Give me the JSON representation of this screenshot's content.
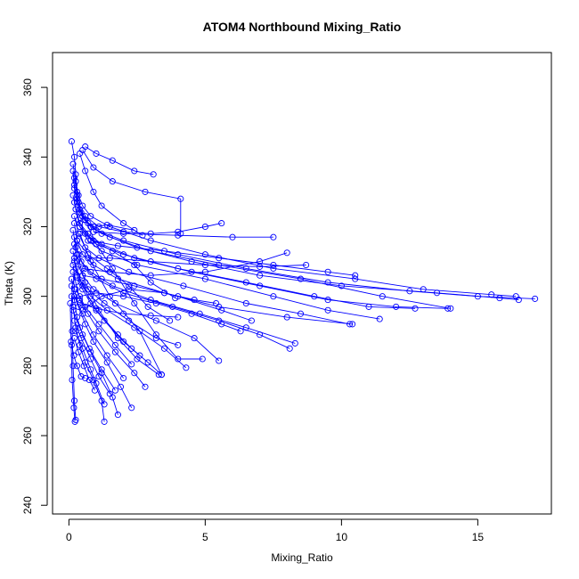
{
  "chart_data": {
    "type": "line",
    "title": "ATOM4 Northbound Mixing_Ratio",
    "xlabel": "Mixing_Ratio",
    "ylabel": "Theta (K)",
    "xlim": [
      -0.6,
      17.7
    ],
    "ylim": [
      237.5,
      370
    ],
    "xticks": [
      "0",
      "5",
      "10",
      "15"
    ],
    "xtick_values": [
      0,
      5,
      10,
      15
    ],
    "yticks": [
      "240",
      "260",
      "280",
      "300",
      "320",
      "340",
      "360"
    ],
    "ytick_values": [
      240,
      260,
      280,
      300,
      320,
      340,
      360
    ],
    "series_color": "#0000ff",
    "marker": "open-circle",
    "grid": false,
    "series": [
      {
        "x": [
          0.1,
          0.2,
          0.25,
          0.3,
          0.35,
          0.4,
          0.55,
          0.9,
          1.4,
          2.4
        ],
        "y": [
          344.5,
          340.0,
          335.0,
          330.0,
          327.0,
          324.0,
          322.0,
          320.0,
          320.5,
          319.0
        ]
      },
      {
        "x": [
          0.15,
          0.25,
          0.35,
          0.5,
          0.8,
          1.5,
          3.0,
          5.0,
          7.5,
          10.5,
          13.0,
          15.5,
          16.4
        ],
        "y": [
          338.0,
          333.0,
          329.0,
          326.0,
          323.0,
          320.0,
          316.0,
          312.0,
          308.0,
          305.0,
          302.0,
          300.5,
          300.0
        ]
      },
      {
        "x": [
          0.15,
          0.2,
          0.3,
          0.45,
          0.7,
          1.2,
          2.5,
          4.5,
          7.0,
          10.0,
          13.5,
          15.8,
          16.5
        ],
        "y": [
          336.0,
          331.0,
          327.0,
          324.0,
          321.0,
          318.0,
          314.0,
          310.0,
          306.0,
          303.0,
          301.0,
          299.5,
          299.0
        ]
      },
      {
        "x": [
          0.2,
          0.3,
          0.4,
          0.6,
          1.0,
          2.0,
          4.0,
          6.5,
          9.5,
          12.5,
          15.0,
          17.1
        ],
        "y": [
          334.0,
          329.0,
          325.0,
          322.0,
          319.0,
          316.0,
          312.0,
          308.0,
          304.0,
          301.5,
          300.0,
          299.3
        ]
      },
      {
        "x": [
          0.2,
          0.3,
          0.5,
          0.8,
          1.5,
          3.0,
          5.5,
          8.5,
          11.5,
          14.0
        ],
        "y": [
          332.0,
          327.0,
          323.0,
          320.0,
          317.0,
          313.0,
          309.0,
          305.0,
          300.0,
          296.5
        ]
      },
      {
        "x": [
          0.15,
          0.25,
          0.4,
          0.7,
          1.2,
          2.4,
          4.5,
          7.0,
          9.5,
          12.0,
          13.9
        ],
        "y": [
          329.0,
          325.0,
          321.0,
          318.0,
          315.0,
          311.0,
          307.0,
          303.0,
          299.0,
          297.0,
          296.5
        ]
      },
      {
        "x": [
          0.2,
          0.35,
          0.6,
          1.0,
          2.0,
          4.0,
          6.5,
          9.0,
          11.0,
          12.7
        ],
        "y": [
          327.0,
          322.0,
          318.0,
          315.0,
          312.0,
          308.0,
          304.0,
          300.0,
          297.0,
          296.5
        ]
      },
      {
        "x": [
          0.25,
          0.4,
          0.7,
          1.2,
          2.5,
          5.0,
          7.5,
          9.5,
          11.4
        ],
        "y": [
          325.0,
          320.0,
          316.0,
          313.0,
          309.0,
          305.0,
          300.0,
          296.0,
          293.5
        ]
      },
      {
        "x": [
          0.2,
          0.35,
          0.6,
          1.1,
          2.2,
          4.2,
          6.5,
          8.5,
          10.3
        ],
        "y": [
          323.0,
          318.0,
          314.0,
          311.0,
          307.0,
          303.0,
          298.0,
          295.0,
          292.0
        ]
      },
      {
        "x": [
          0.2,
          0.3,
          0.5,
          0.9,
          1.8,
          3.5,
          5.5,
          8.0,
          10.4
        ],
        "y": [
          321.0,
          316.0,
          312.0,
          309.0,
          305.0,
          301.0,
          297.0,
          294.0,
          292.0
        ]
      },
      {
        "x": [
          0.15,
          0.25,
          0.45,
          0.8,
          1.6,
          3.0,
          4.8,
          6.5,
          8.3
        ],
        "y": [
          319.0,
          314.0,
          310.0,
          307.0,
          303.0,
          299.0,
          295.0,
          291.0,
          286.5
        ]
      },
      {
        "x": [
          0.2,
          0.35,
          0.6,
          1.0,
          2.0,
          3.8,
          5.5,
          7.0,
          8.1
        ],
        "y": [
          317.0,
          312.0,
          308.0,
          305.0,
          301.0,
          297.0,
          293.0,
          289.0,
          285.0
        ]
      },
      {
        "x": [
          0.2,
          0.3,
          0.5,
          0.9,
          1.7,
          3.2,
          4.6,
          5.5
        ],
        "y": [
          315.0,
          310.0,
          306.0,
          302.0,
          298.0,
          293.0,
          288.0,
          281.5
        ]
      },
      {
        "x": [
          0.15,
          0.25,
          0.45,
          0.8,
          1.4,
          2.4,
          3.5,
          4.3
        ],
        "y": [
          313.0,
          308.0,
          304.0,
          300.0,
          296.0,
          291.0,
          285.0,
          279.5
        ]
      },
      {
        "x": [
          0.2,
          0.3,
          0.5,
          0.8,
          1.3,
          2.0,
          2.9,
          3.4
        ],
        "y": [
          311.0,
          306.0,
          302.0,
          298.0,
          293.0,
          287.0,
          281.0,
          277.5
        ]
      },
      {
        "x": [
          0.15,
          0.25,
          0.4,
          0.7,
          1.1,
          1.7,
          2.4,
          2.8
        ],
        "y": [
          309.0,
          304.0,
          299.0,
          295.0,
          290.0,
          284.0,
          278.0,
          274.0
        ]
      },
      {
        "x": [
          0.15,
          0.2,
          0.35,
          0.6,
          0.9,
          1.4,
          1.9,
          2.3
        ],
        "y": [
          307.0,
          302.0,
          297.0,
          292.0,
          287.0,
          281.0,
          274.0,
          268.0
        ]
      },
      {
        "x": [
          0.1,
          0.2,
          0.3,
          0.5,
          0.8,
          1.2,
          1.6,
          1.8
        ],
        "y": [
          305.0,
          299.0,
          294.0,
          289.0,
          284.0,
          278.0,
          271.0,
          266.0
        ]
      },
      {
        "x": [
          0.1,
          0.15,
          0.25,
          0.4,
          0.6,
          0.9,
          1.2,
          1.3
        ],
        "y": [
          303.0,
          297.0,
          291.0,
          286.0,
          281.0,
          276.0,
          270.0,
          264.0
        ]
      },
      {
        "x": [
          0.1,
          0.12,
          0.15,
          0.2,
          0.25
        ],
        "y": [
          300.0,
          290.0,
          280.0,
          270.0,
          264.5
        ]
      },
      {
        "x": [
          0.05,
          0.08,
          0.12,
          0.18,
          0.22
        ],
        "y": [
          298.0,
          287.0,
          276.0,
          268.0,
          264.0
        ]
      },
      {
        "x": [
          0.3,
          0.6,
          1.0,
          1.6,
          2.4,
          3.2,
          4.0,
          4.9
        ],
        "y": [
          328.0,
          322.0,
          315.0,
          308.0,
          298.0,
          289.0,
          282.0,
          282.0
        ]
      },
      {
        "x": [
          0.4,
          0.8,
          1.5,
          2.6,
          3.4
        ],
        "y": [
          318.0,
          310.0,
          300.0,
          290.0,
          277.5
        ]
      },
      {
        "x": [
          0.3,
          0.6,
          1.1,
          1.8,
          2.5,
          3.3
        ],
        "y": [
          312.0,
          304.0,
          296.0,
          288.0,
          282.0,
          277.5
        ]
      },
      {
        "x": [
          0.6,
          1.0,
          1.6,
          2.4,
          3.1
        ],
        "y": [
          343.0,
          341.0,
          339.0,
          336.0,
          335.0
        ]
      },
      {
        "x": [
          0.5,
          0.9,
          1.6,
          2.8,
          4.1,
          4.1
        ],
        "y": [
          342.0,
          337.0,
          333.0,
          330.0,
          328.0,
          318.0
        ]
      },
      {
        "x": [
          0.4,
          0.6,
          0.9,
          1.2,
          2.0,
          2.7
        ],
        "y": [
          341.0,
          336.0,
          330.0,
          326.0,
          321.0,
          317.5
        ]
      },
      {
        "x": [
          0.6,
          1.1,
          2.0,
          3.0,
          4.0,
          5.0,
          5.6
        ],
        "y": [
          323.0,
          320.0,
          318.5,
          318.0,
          318.5,
          320.0,
          321.0
        ]
      },
      {
        "x": [
          0.4,
          0.9,
          1.6,
          2.4,
          3.0,
          3.9
        ],
        "y": [
          320.0,
          316.0,
          313.0,
          309.0,
          304.0,
          299.5
        ]
      },
      {
        "x": [
          0.3,
          0.7,
          1.4,
          2.2,
          2.9,
          3.7
        ],
        "y": [
          316.0,
          312.0,
          308.0,
          303.0,
          297.0,
          293.0
        ]
      },
      {
        "x": [
          0.2,
          0.5,
          1.0,
          1.8,
          2.3,
          2.6
        ],
        "y": [
          310.0,
          303.0,
          296.0,
          289.0,
          285.0,
          283.0
        ]
      },
      {
        "x": [
          0.3,
          0.7,
          1.3,
          2.2,
          3.2,
          4.0
        ],
        "y": [
          305.5,
          302.0,
          298.0,
          293.0,
          288.0,
          286.0
        ]
      },
      {
        "x": [
          0.25,
          0.6,
          1.1,
          1.7,
          2.3
        ],
        "y": [
          302.0,
          297.0,
          292.0,
          286.0,
          280.5
        ]
      },
      {
        "x": [
          0.2,
          0.5,
          0.9,
          1.4,
          2.0
        ],
        "y": [
          300.0,
          295.0,
          289.0,
          283.0,
          276.5
        ]
      },
      {
        "x": [
          0.15,
          0.4,
          0.75,
          1.2,
          1.7
        ],
        "y": [
          296.0,
          291.0,
          285.0,
          279.0,
          273.0
        ]
      },
      {
        "x": [
          0.2,
          0.45,
          0.8,
          1.1,
          1.5
        ],
        "y": [
          293.0,
          288.0,
          282.0,
          277.0,
          272.0
        ]
      },
      {
        "x": [
          0.25,
          0.5,
          0.8,
          1.0,
          1.3
        ],
        "y": [
          290.0,
          285.0,
          279.0,
          275.0,
          269.0
        ]
      },
      {
        "x": [
          0.2,
          0.35,
          0.55,
          0.75,
          0.95
        ],
        "y": [
          288.0,
          284.0,
          280.0,
          276.0,
          273.0
        ]
      },
      {
        "x": [
          0.1,
          0.18,
          0.3,
          0.45,
          0.6
        ],
        "y": [
          286.0,
          283.0,
          280.0,
          277.0,
          276.5
        ]
      },
      {
        "x": [
          0.5,
          1.2,
          2.2,
          3.5,
          4.6,
          5.4
        ],
        "y": [
          296.0,
          300.0,
          302.0,
          301.0,
          299.0,
          298.0
        ]
      },
      {
        "x": [
          0.4,
          1.0,
          2.0,
          3.2,
          4.5,
          5.6,
          6.3
        ],
        "y": [
          300.0,
          301.0,
          300.0,
          298.0,
          295.0,
          292.0,
          290.0
        ]
      },
      {
        "x": [
          0.5,
          1.2,
          2.4,
          4.0,
          5.6,
          6.7
        ],
        "y": [
          306.0,
          305.0,
          303.0,
          300.0,
          296.0,
          293.0
        ]
      },
      {
        "x": [
          0.7,
          1.5,
          3.0,
          5.0,
          7.0,
          8.7
        ],
        "y": [
          311.0,
          311.0,
          310.0,
          309.0,
          308.5,
          309.0
        ]
      },
      {
        "x": [
          0.8,
          1.8,
          3.5,
          5.5,
          7.5,
          9.5,
          10.5
        ],
        "y": [
          316.0,
          314.5,
          313.0,
          311.0,
          309.0,
          307.0,
          306.0
        ]
      },
      {
        "x": [
          0.9,
          2.0,
          4.0,
          6.0,
          7.5
        ],
        "y": [
          318.5,
          318.0,
          317.5,
          317.0,
          317.0
        ]
      },
      {
        "x": [
          0.5,
          1.5,
          3.0,
          5.0,
          7.0,
          8.0
        ],
        "y": [
          308.0,
          307.0,
          306.0,
          307.0,
          310.0,
          312.5
        ]
      },
      {
        "x": [
          0.4,
          1.0,
          2.0,
          3.0,
          4.0
        ],
        "y": [
          298.0,
          296.5,
          295.0,
          294.5,
          294.0
        ]
      }
    ]
  }
}
